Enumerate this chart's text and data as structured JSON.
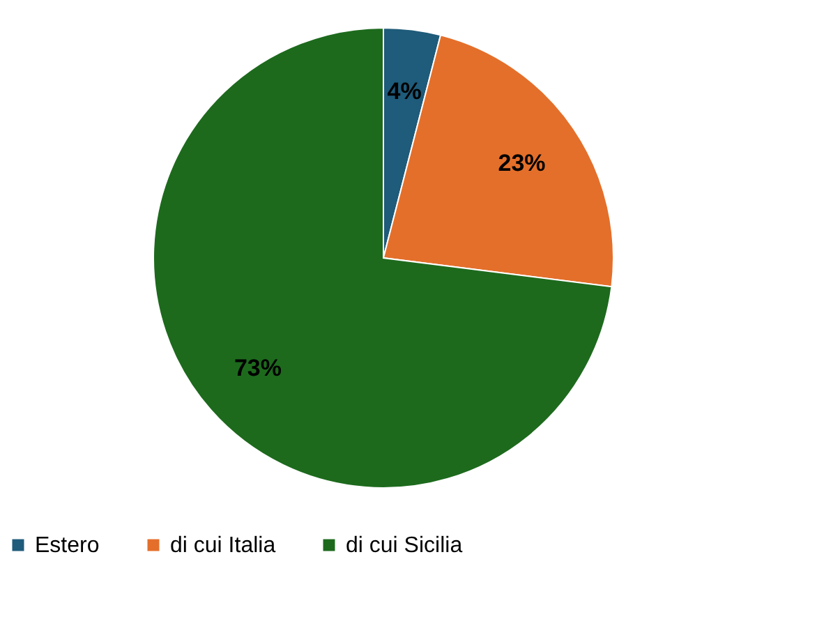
{
  "chart_data": {
    "type": "pie",
    "categories": [
      "Estero",
      "di cui Italia",
      "di cui Sicilia"
    ],
    "values": [
      4,
      23,
      73
    ],
    "colors": [
      "#1f5b7a",
      "#e46f2a",
      "#1d6a1d"
    ],
    "value_labels": [
      "4%",
      "23%",
      "73%"
    ],
    "legend": "bottom"
  }
}
